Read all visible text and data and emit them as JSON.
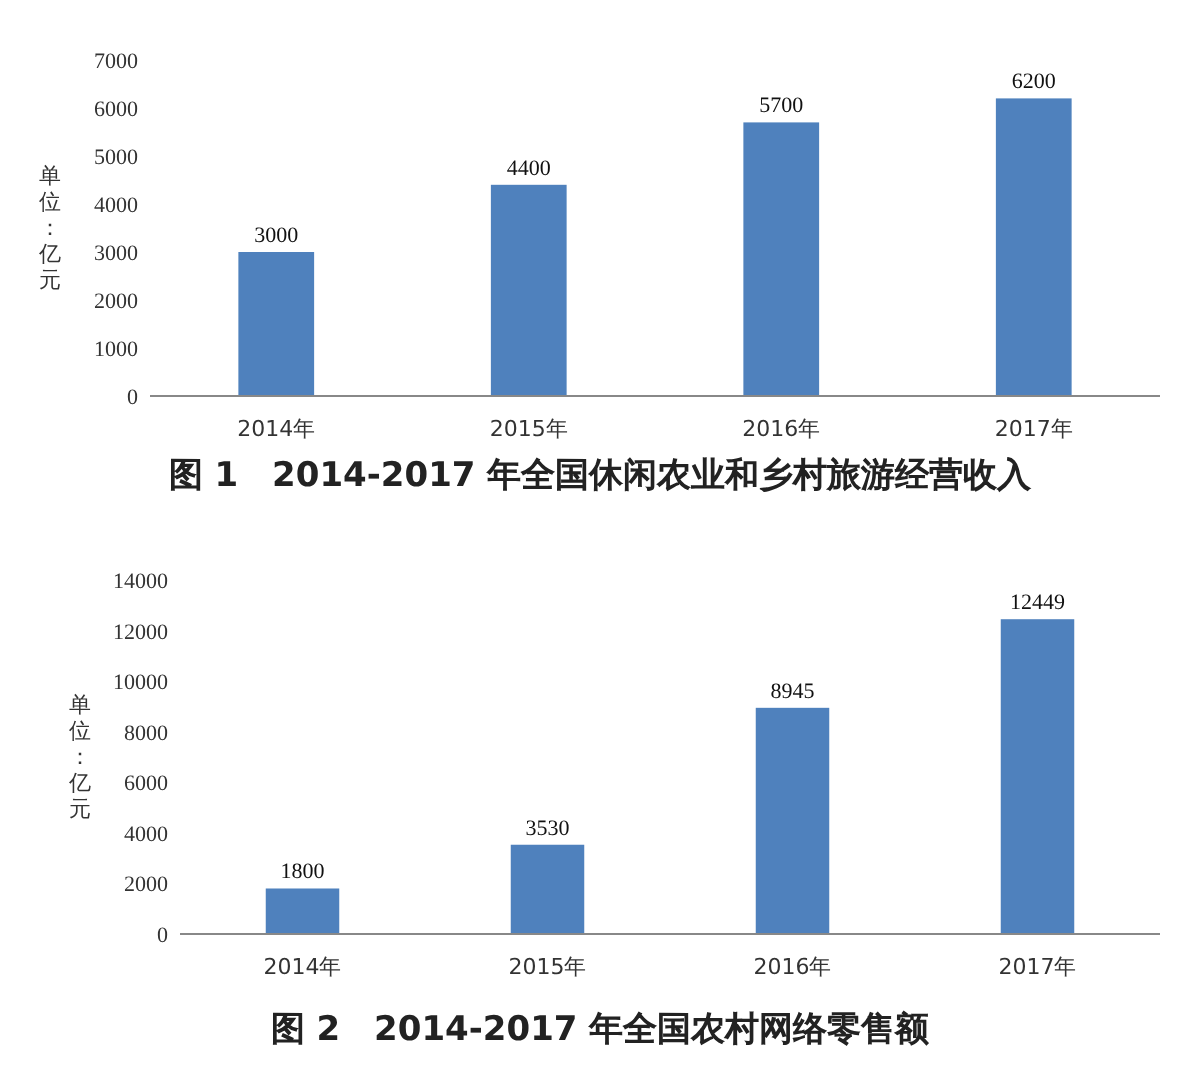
{
  "chart_data": [
    {
      "type": "bar",
      "title": "图 1　2014-2017 年全国休闲农业和乡村旅游经营收入",
      "ylabel": "单位：亿元",
      "categories": [
        "2014年",
        "2015年",
        "2016年",
        "2017年"
      ],
      "values": [
        3000,
        4400,
        5700,
        6200
      ],
      "color": "#4f81bd",
      "ylim": [
        0,
        7000
      ],
      "yticks": [
        0,
        1000,
        2000,
        3000,
        4000,
        5000,
        6000,
        7000
      ],
      "data_labels": true
    },
    {
      "type": "bar",
      "title": "图 2　2014-2017 年全国农村网络零售额",
      "ylabel": "单位：亿元",
      "categories": [
        "2014年",
        "2015年",
        "2016年",
        "2017年"
      ],
      "values": [
        1800,
        3530,
        8945,
        12449
      ],
      "color": "#4f81bd",
      "ylim": [
        0,
        14000
      ],
      "yticks": [
        0,
        2000,
        4000,
        6000,
        8000,
        10000,
        12000,
        14000
      ],
      "data_labels": true
    }
  ]
}
